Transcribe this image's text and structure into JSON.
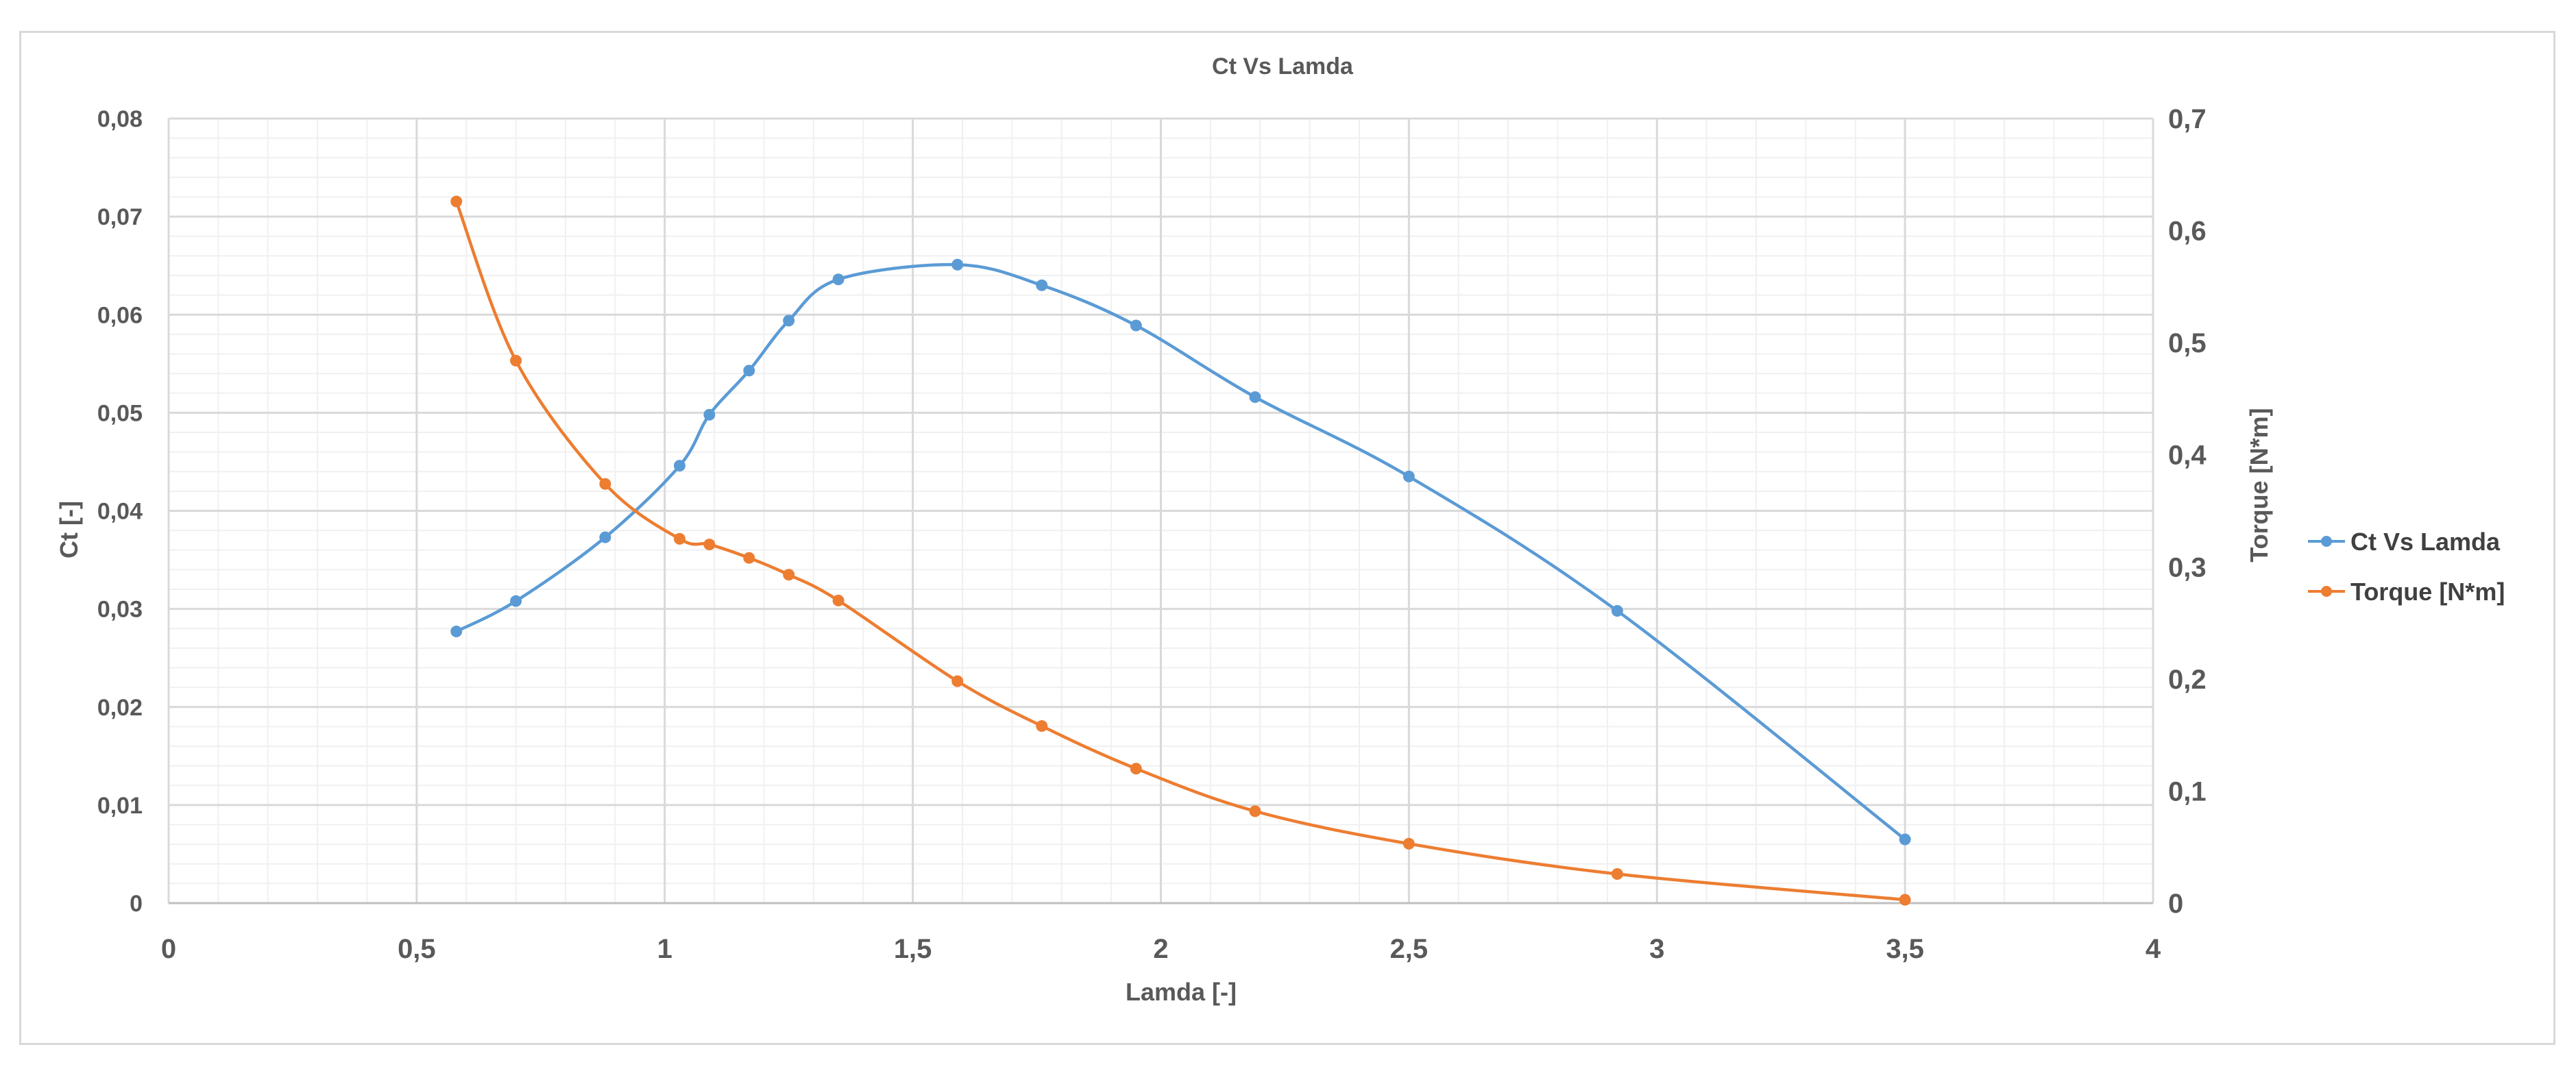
{
  "chart_data": {
    "type": "line",
    "title": "Ct Vs Lamda",
    "xlabel": "Lamda [-]",
    "ylabel": "Ct [-]",
    "y2label": "Torque [N*m]",
    "xlim": [
      0,
      4
    ],
    "ylim": [
      0,
      0.08
    ],
    "y2lim": [
      0,
      0.7
    ],
    "x_ticks": [
      "0",
      "0,5",
      "1",
      "1,5",
      "2",
      "2,5",
      "3",
      "3,5",
      "4"
    ],
    "y_ticks": [
      "0",
      "0,01",
      "0,02",
      "0,03",
      "0,04",
      "0,05",
      "0,06",
      "0,07",
      "0,08"
    ],
    "y2_ticks": [
      "0",
      "0,1",
      "0,2",
      "0,3",
      "0,4",
      "0,5",
      "0,6",
      "0,7"
    ],
    "grid": true,
    "legend_position": "right",
    "series": [
      {
        "name": "Ct Vs Lamda",
        "axis": "left",
        "color": "#5b9bd5",
        "x": [
          0.58,
          0.7,
          0.88,
          1.03,
          1.09,
          1.17,
          1.25,
          1.35,
          1.59,
          1.76,
          1.95,
          2.19,
          2.5,
          2.92,
          3.5
        ],
        "y": [
          0.0277,
          0.0308,
          0.0373,
          0.0446,
          0.0498,
          0.0543,
          0.0594,
          0.0636,
          0.0651,
          0.063,
          0.0589,
          0.0516,
          0.0435,
          0.0298,
          0.0065
        ]
      },
      {
        "name": "Torque [N*m]",
        "axis": "right",
        "color": "#ed7d31",
        "x": [
          0.58,
          0.7,
          0.88,
          1.03,
          1.09,
          1.17,
          1.25,
          1.35,
          1.59,
          1.76,
          1.95,
          2.19,
          2.5,
          2.92,
          3.5
        ],
        "y": [
          0.626,
          0.484,
          0.374,
          0.325,
          0.32,
          0.308,
          0.293,
          0.27,
          0.198,
          0.158,
          0.12,
          0.082,
          0.053,
          0.026,
          0.003
        ]
      }
    ]
  }
}
